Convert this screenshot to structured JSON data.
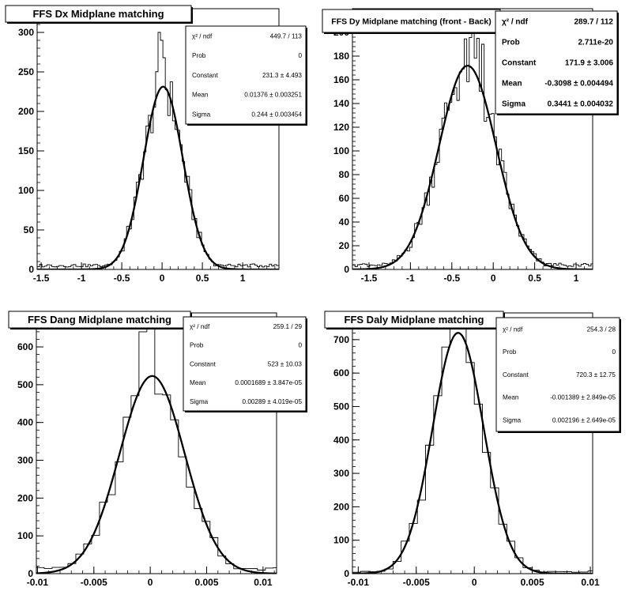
{
  "charts": [
    {
      "title": "FFS Dx Midplane matching",
      "type": "histogram+gaussian-fit",
      "xlim": [
        -1.55,
        1.45
      ],
      "ylim": [
        0,
        330
      ],
      "xticks": [
        -1.5,
        -1,
        -0.5,
        0,
        0.5,
        1
      ],
      "xticklabels": [
        "-1.5",
        "-1",
        "-0.5",
        "0",
        "0.5",
        "1"
      ],
      "yticks": [
        0,
        50,
        100,
        150,
        200,
        250,
        300
      ],
      "yticklabels": [
        "0",
        "50",
        "100",
        "150",
        "200",
        "250",
        "300"
      ],
      "fit": {
        "constant": 231.3,
        "mean": 0.01376,
        "sigma": 0.244
      },
      "hist_bin_width": 0.03,
      "spike": {
        "x": [
          -0.03,
          0.0,
          0.03
        ],
        "y": [
          300,
          290,
          268
        ]
      },
      "tail_floor": 5,
      "stats": [
        {
          "label": "χ² / ndf",
          "value": "449.7 / 113"
        },
        {
          "label": "Prob",
          "value": "0"
        },
        {
          "label": "Constant",
          "value": "231.3  ± 4.493"
        },
        {
          "label": "Mean",
          "value": "0.01376  ± 0.003251"
        },
        {
          "label": "Sigma",
          "value": "0.244  ± 0.003454"
        }
      ]
    },
    {
      "title": "FFS Dy Midplane matching (front - Back)",
      "type": "histogram+gaussian-fit",
      "xlim": [
        -1.7,
        1.2
      ],
      "ylim": [
        0,
        220
      ],
      "xticks": [
        -1.5,
        -1,
        -0.5,
        0,
        0.5,
        1
      ],
      "xticklabels": [
        "-1.5",
        "-1",
        "-0.5",
        "0",
        "0.5",
        "1"
      ],
      "yticks": [
        0,
        20,
        40,
        60,
        80,
        100,
        120,
        140,
        160,
        180,
        200
      ],
      "yticklabels": [
        "0",
        "20",
        "40",
        "60",
        "80",
        "100",
        "120",
        "140",
        "160",
        "180",
        "200"
      ],
      "fit": {
        "constant": 171.9,
        "mean": -0.3098,
        "sigma": 0.3441
      },
      "hist_bin_width": 0.03,
      "spike": {
        "x": [
          -0.24,
          -0.18,
          -0.12
        ],
        "y": [
          205,
          195,
          190
        ]
      },
      "tail_floor": 4,
      "stats": [
        {
          "label": "χ² / ndf",
          "value": "289.7 / 112"
        },
        {
          "label": "Prob",
          "value": "2.711e-20"
        },
        {
          "label": "Constant",
          "value": "171.9 ± 3.006"
        },
        {
          "label": "Mean",
          "value": "-0.3098 ± 0.004494"
        },
        {
          "label": "Sigma",
          "value": "0.3441 ± 0.004032"
        }
      ]
    },
    {
      "title": "FFS Dang Midplane matching",
      "type": "histogram+gaussian-fit",
      "xlim": [
        -0.0101,
        0.0112
      ],
      "ylim": [
        0,
        690
      ],
      "xticks": [
        -0.01,
        -0.005,
        0,
        0.005,
        0.01
      ],
      "xticklabels": [
        "-0.01",
        "-0.005",
        "0",
        "0.005",
        "0.01"
      ],
      "yticks": [
        0,
        100,
        200,
        300,
        400,
        500,
        600
      ],
      "yticklabels": [
        "0",
        "100",
        "200",
        "300",
        "400",
        "500",
        "600"
      ],
      "fit": {
        "constant": 523,
        "mean": 0.0001689,
        "sigma": 0.00289
      },
      "hist_bin_width": 0.0007,
      "spike": {
        "x": [
          -0.00035,
          0.00035
        ],
        "y": [
          640,
          650
        ]
      },
      "tail_floor": 12,
      "stats": [
        {
          "label": "χ² / ndf",
          "value": "259.1 / 29"
        },
        {
          "label": "Prob",
          "value": "0"
        },
        {
          "label": "Constant",
          "value": "523  ± 10.03"
        },
        {
          "label": "Mean",
          "value": "0.0001689 ± 3.847e-05"
        },
        {
          "label": "Sigma",
          "value": "0.00289 ± 4.019e-05"
        }
      ]
    },
    {
      "title": "FFS Daly Midplane matching",
      "type": "histogram+gaussian-fit",
      "xlim": [
        -0.0105,
        0.0102
      ],
      "ylim": [
        0,
        780
      ],
      "xticks": [
        -0.01,
        -0.005,
        0,
        0.005,
        0.01
      ],
      "xticklabels": [
        "-0.01",
        "-0.005",
        "0",
        "0.005",
        "0.01"
      ],
      "yticks": [
        0,
        100,
        200,
        300,
        400,
        500,
        600,
        700
      ],
      "yticklabels": [
        "0",
        "100",
        "200",
        "300",
        "400",
        "500",
        "600",
        "700"
      ],
      "fit": {
        "constant": 720.3,
        "mean": -0.001389,
        "sigma": 0.002196
      },
      "hist_bin_width": 0.0007,
      "spike": {
        "x": [
          -0.00135
        ],
        "y": [
          735
        ]
      },
      "tail_floor": 6,
      "stats": [
        {
          "label": "χ² / ndf",
          "value": "254.3 / 28"
        },
        {
          "label": "Prob",
          "value": "0"
        },
        {
          "label": "Constant",
          "value": "720.3 ± 12.75"
        },
        {
          "label": "Mean",
          "value": "-0.001389 ± 2.849e-05"
        },
        {
          "label": "Sigma",
          "value": "0.002196 ± 2.649e-05"
        }
      ]
    }
  ]
}
